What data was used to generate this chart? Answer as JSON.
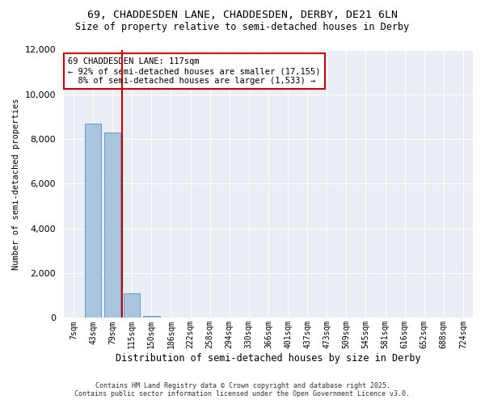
{
  "title_line1": "69, CHADDESDEN LANE, CHADDESDEN, DERBY, DE21 6LN",
  "title_line2": "Size of property relative to semi-detached houses in Derby",
  "xlabel": "Distribution of semi-detached houses by size in Derby",
  "ylabel": "Number of semi-detached properties",
  "categories": [
    "7sqm",
    "43sqm",
    "79sqm",
    "115sqm",
    "150sqm",
    "186sqm",
    "222sqm",
    "258sqm",
    "294sqm",
    "330sqm",
    "366sqm",
    "401sqm",
    "437sqm",
    "473sqm",
    "509sqm",
    "545sqm",
    "581sqm",
    "616sqm",
    "652sqm",
    "688sqm",
    "724sqm"
  ],
  "values": [
    0,
    8700,
    8300,
    1100,
    80,
    30,
    10,
    5,
    2,
    1,
    0,
    0,
    0,
    0,
    0,
    0,
    0,
    0,
    0,
    0,
    0
  ],
  "bar_color": "#aac4dd",
  "bar_edge_color": "#5b9bd5",
  "vline_color": "#cc0000",
  "annotation_text": "69 CHADDESDEN LANE: 117sqm\n← 92% of semi-detached houses are smaller (17,155)\n  8% of semi-detached houses are larger (1,533) →",
  "annotation_box_color": "#cc0000",
  "ylim": [
    0,
    12000
  ],
  "yticks": [
    0,
    2000,
    4000,
    6000,
    8000,
    10000,
    12000
  ],
  "bg_color": "#e8eef4",
  "footer_line1": "Contains HM Land Registry data © Crown copyright and database right 2025.",
  "footer_line2": "Contains public sector information licensed under the Open Government Licence v3.0."
}
